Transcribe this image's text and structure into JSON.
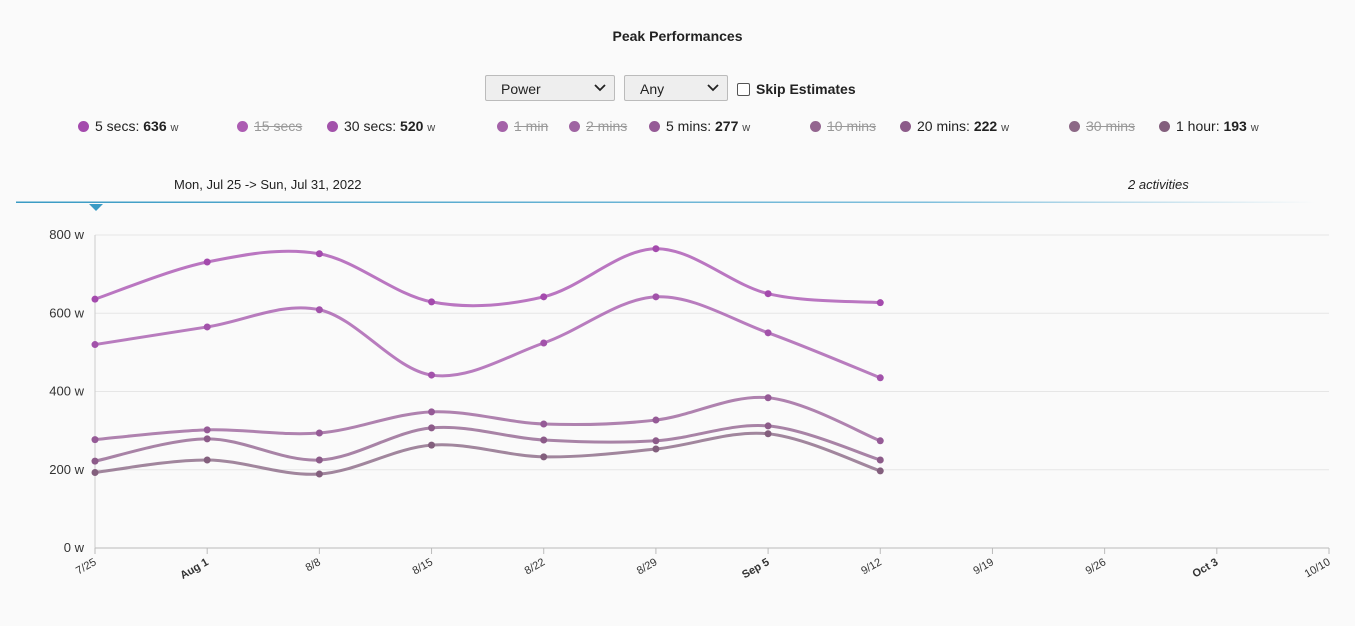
{
  "title": "Peak Performances",
  "controls": {
    "metric": "Power",
    "filter": "Any",
    "skip_estimates": "Skip Estimates"
  },
  "range_label": "Mon, Jul 25 -> Sun, Jul 31, 2022",
  "activities": "2 activities",
  "chart_data": {
    "type": "line",
    "unit": "w",
    "categories": [
      "7/25",
      "Aug 1",
      "8/8",
      "8/15",
      "8/22",
      "8/29",
      "Sep 5",
      "9/12",
      "9/19",
      "9/26",
      "Oct 3",
      "10/10"
    ],
    "ylim": [
      0,
      800
    ],
    "yticks": [
      {
        "value": 0,
        "label": "0 w"
      },
      {
        "value": 200,
        "label": "200 w"
      },
      {
        "value": 400,
        "label": "400 w"
      },
      {
        "value": 600,
        "label": "600 w"
      },
      {
        "value": 800,
        "label": "800 w"
      }
    ],
    "grid": true,
    "series": [
      {
        "name": "5 secs",
        "color": "#a44aad",
        "legend_value": 636,
        "values": [
          636,
          731,
          752,
          629,
          642,
          765,
          650,
          627,
          null,
          null,
          null,
          null
        ]
      },
      {
        "name": "15 secs",
        "color": "#ac5cb2",
        "hidden": true
      },
      {
        "name": "30 secs",
        "color": "#a252aa",
        "legend_value": 520,
        "values": [
          520,
          565,
          609,
          442,
          524,
          642,
          550,
          435,
          null,
          null,
          null,
          null
        ]
      },
      {
        "name": "1 min",
        "color": "#a462a8",
        "hidden": true
      },
      {
        "name": "2 mins",
        "color": "#9f64a2",
        "hidden": true
      },
      {
        "name": "5 mins",
        "color": "#955a96",
        "legend_value": 277,
        "values": [
          277,
          302,
          294,
          348,
          317,
          327,
          384,
          274,
          null,
          null,
          null,
          null
        ]
      },
      {
        "name": "10 mins",
        "color": "#93658f",
        "hidden": true
      },
      {
        "name": "20 mins",
        "color": "#8c5b89",
        "legend_value": 222,
        "values": [
          222,
          279,
          225,
          307,
          276,
          274,
          312,
          225,
          null,
          null,
          null,
          null
        ]
      },
      {
        "name": "30 mins",
        "color": "#8c6886",
        "hidden": true
      },
      {
        "name": "1 hour",
        "color": "#835f7d",
        "legend_value": 193,
        "values": [
          193,
          225,
          189,
          263,
          233,
          253,
          292,
          197,
          null,
          null,
          null,
          null
        ]
      }
    ]
  }
}
